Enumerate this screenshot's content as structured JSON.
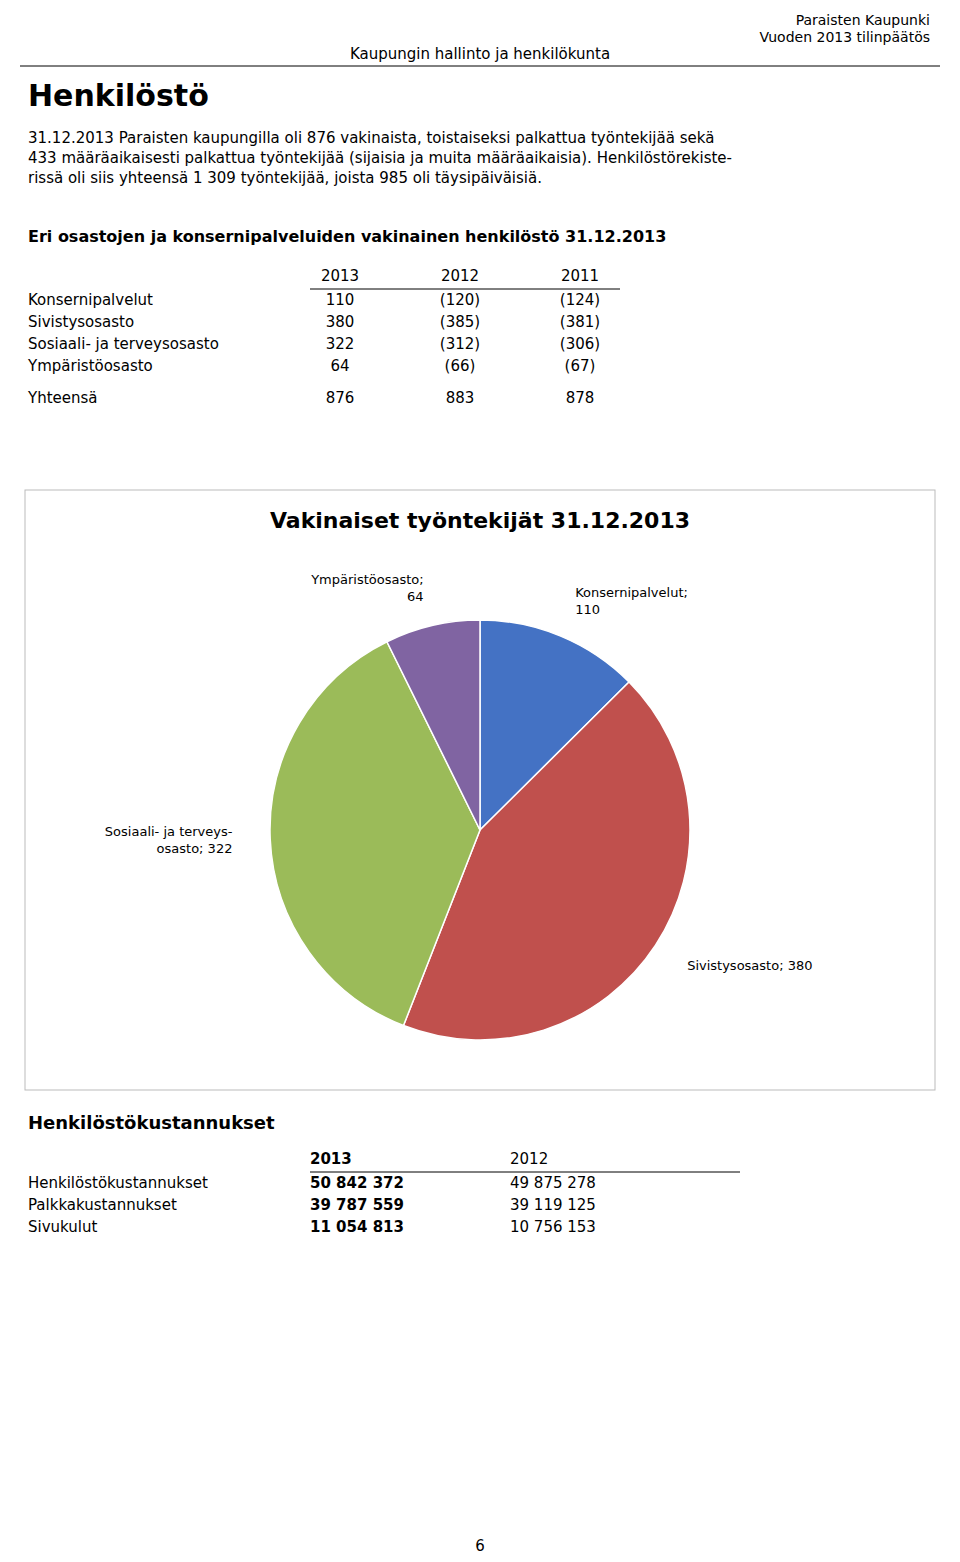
{
  "page": {
    "header_right_line1": "Paraisten Kaupunki",
    "header_right_line2": "Vuoden 2013 tilinpäätös",
    "header_center": "Kaupungin hallinto ja henkilökunta",
    "main_title": "Henkilöstö",
    "para_lines": [
      "31.12.2013 Paraisten kaupungilla oli 876 vakinaista, toistaiseksi palkattua työntekijää sekä",
      "433 määräaikaisesti palkattua työntekijää (sijaisia ja muita määräaikaisia). Henkilöstörekiste-",
      "rissä oli siis yhteensä 1 309 työntekijää, joista 985 oli täysipäiväisiä."
    ],
    "section_title": "Eri osastojen ja konsernipalveluiden vakinainen henkilöstö 31.12.2013",
    "table_headers": [
      "2013",
      "2012",
      "2011"
    ],
    "table_rows": [
      [
        "Konsernipalvelut",
        "110",
        "(120)",
        "(124)"
      ],
      [
        "Sivistysosasto",
        "380",
        "(385)",
        "(381)"
      ],
      [
        "Sosiaali- ja terveysosasto",
        "322",
        "(312)",
        "(306)"
      ],
      [
        "Ympäristöosasto",
        "64",
        "(66)",
        "(67)"
      ]
    ],
    "table_total_label": "Yhteensä",
    "table_total_values": [
      "876",
      "883",
      "878"
    ],
    "costs_title": "Henkilöstökustannukset",
    "costs_col_headers": [
      "2013",
      "2012"
    ],
    "costs_rows": [
      [
        "Henkilöstökustannukset",
        "50 842 372",
        "49 875 278"
      ],
      [
        "Palkkakustannukset",
        "39 787 559",
        "39 119 125"
      ],
      [
        "Sivukulut",
        "11 054 813",
        "10 756 153"
      ]
    ],
    "page_number": "6"
  },
  "chart_data": {
    "type": "pie",
    "title": "Vakinaiset työntekijät 31.12.2013",
    "values": [
      110,
      380,
      322,
      64
    ],
    "value_labels": [
      "Konsernipalvelut;\n110",
      "Sivistysosasto; 380",
      "Sosiaali- ja terveys-\nosasto; 322",
      "Ympäristöosasto;\n64"
    ],
    "colors": [
      "#4472C4",
      "#C0504D",
      "#9BBB59",
      "#8064A2"
    ],
    "data_labels": true
  }
}
